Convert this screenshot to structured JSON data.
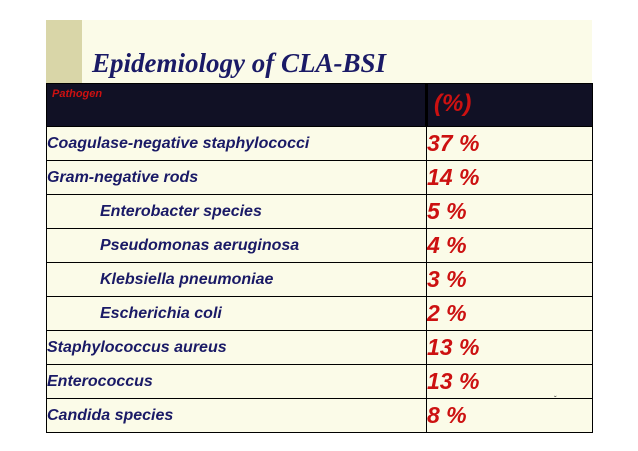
{
  "slide": {
    "title": "Epidemiology of CLA-BSI",
    "accent_color": "#d9d6a8",
    "background_color": "#fbfbe8"
  },
  "table": {
    "headers": {
      "pathogen": "Pathogen",
      "percent": "(%)"
    },
    "header_background": "#111125",
    "name_color": "#1a1a66",
    "value_color": "#cc1111",
    "rows": [
      {
        "name": "Coagulase-negative staphylococci",
        "value": "37 %",
        "indent": false
      },
      {
        "name": "Gram-negative rods",
        "value": "14 %",
        "indent": false
      },
      {
        "name": "Enterobacter species",
        "value": "5 %",
        "indent": true
      },
      {
        "name": "Pseudomonas aeruginosa",
        "value": "4 %",
        "indent": true
      },
      {
        "name": "Klebsiella pneumoniae",
        "value": "3 %",
        "indent": true
      },
      {
        "name": "Escherichia coli",
        "value": "2 %",
        "indent": true
      },
      {
        "name": "Staphylococcus aureus",
        "value": "13 %",
        "indent": false
      },
      {
        "name": "Enterococcus",
        "value": "13 %",
        "indent": false
      },
      {
        "name": "Candida species",
        "value": "8 %",
        "indent": false
      }
    ]
  },
  "footer_mark": "ˇ"
}
